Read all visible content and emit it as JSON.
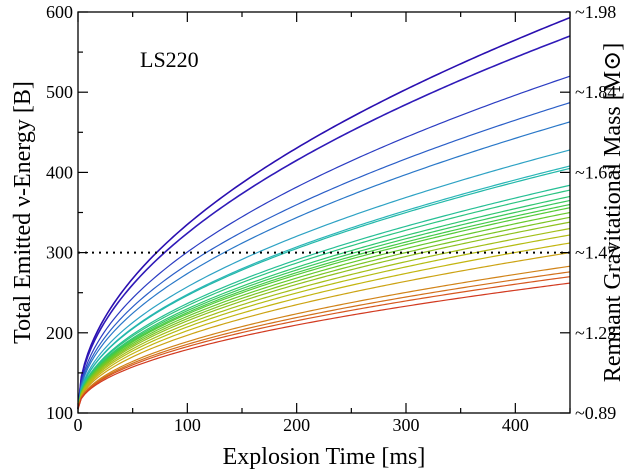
{
  "chart_data": {
    "type": "line",
    "annotation": "LS220",
    "xlabel": "Explosion Time [ms]",
    "ylabel": "Total Emitted  ν-Energy [B]",
    "y2label": "Remnant Gravitational Mass [M⊙]",
    "xlim": [
      0,
      450
    ],
    "ylim": [
      100,
      600
    ],
    "x_ticks": [
      "0",
      "100",
      "200",
      "300",
      "400"
    ],
    "y_ticks": [
      "100",
      "200",
      "300",
      "400",
      "500",
      "600"
    ],
    "y2_ticks": [
      "~0.89",
      "~1.23",
      "~1.47",
      "~1.67",
      "~1.84",
      "~1.98"
    ],
    "reference_line": {
      "y": 300,
      "style": "dotted"
    },
    "grid": false,
    "legend": "none",
    "curve_shape": "y = 105 + (y_end - 105) * (t/450)^0.5",
    "series": [
      {
        "y_end": 593,
        "color": "#2a0fb0"
      },
      {
        "y_end": 570,
        "color": "#2f1ab8"
      },
      {
        "y_end": 520,
        "color": "#2b3cc2"
      },
      {
        "y_end": 487,
        "color": "#2a5ec7"
      },
      {
        "y_end": 463,
        "color": "#2a78c8"
      },
      {
        "y_end": 428,
        "color": "#2ea2c4"
      },
      {
        "y_end": 408,
        "color": "#2ab5b8"
      },
      {
        "y_end": 405,
        "color": "#22b8a8"
      },
      {
        "y_end": 384,
        "color": "#26bf94"
      },
      {
        "y_end": 378,
        "color": "#2cc480"
      },
      {
        "y_end": 370,
        "color": "#2fc770"
      },
      {
        "y_end": 365,
        "color": "#3ac95c"
      },
      {
        "y_end": 360,
        "color": "#44ca48"
      },
      {
        "y_end": 356,
        "color": "#55cb38"
      },
      {
        "y_end": 350,
        "color": "#66c92c"
      },
      {
        "y_end": 344,
        "color": "#7cc524"
      },
      {
        "y_end": 338,
        "color": "#8fc11e"
      },
      {
        "y_end": 330,
        "color": "#a3bf18"
      },
      {
        "y_end": 322,
        "color": "#b4bc12"
      },
      {
        "y_end": 312,
        "color": "#c3b510"
      },
      {
        "y_end": 300,
        "color": "#cca313"
      },
      {
        "y_end": 283,
        "color": "#d18318"
      },
      {
        "y_end": 276,
        "color": "#d2701c"
      },
      {
        "y_end": 270,
        "color": "#d6571f"
      },
      {
        "y_end": 262,
        "color": "#d23a20"
      }
    ]
  }
}
